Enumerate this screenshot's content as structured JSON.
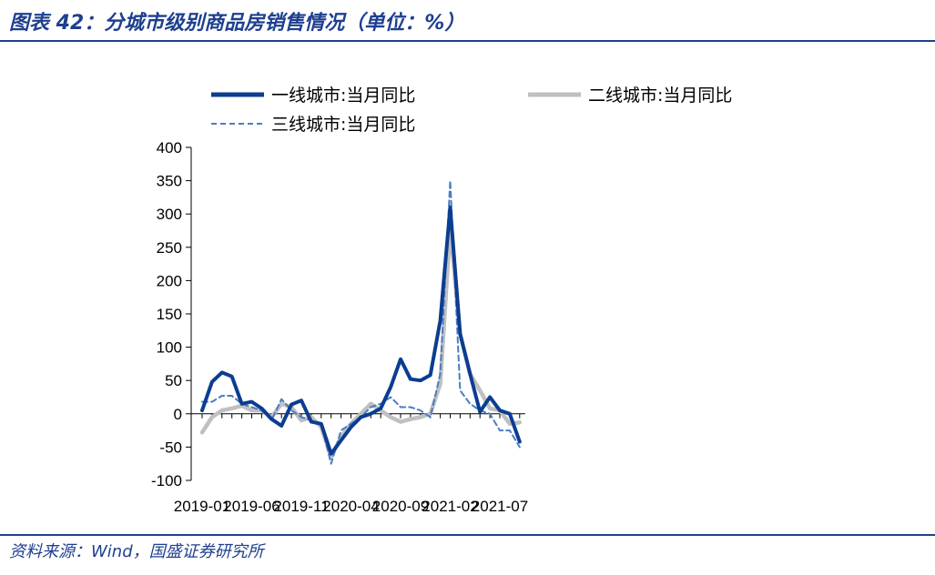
{
  "header": {
    "title": "图表 42：分城市级别商品房销售情况（单位：%）"
  },
  "footer": {
    "source": "资料来源：Wind，国盛证券研究所"
  },
  "colors": {
    "brand": "#1f3f8f",
    "tier1": "#0b3d91",
    "tier2": "#c0c0c0",
    "tier3": "#4a7cc4"
  },
  "chart_data": {
    "type": "line",
    "title": "",
    "xlabel": "",
    "ylabel": "",
    "ylim": [
      -100,
      400
    ],
    "yticks": [
      400,
      350,
      300,
      250,
      200,
      150,
      100,
      50,
      0,
      -50,
      -100
    ],
    "x_tick_labels": [
      {
        "index": 0,
        "label": "2019-01"
      },
      {
        "index": 5,
        "label": "2019-06"
      },
      {
        "index": 10,
        "label": "2019-11"
      },
      {
        "index": 15,
        "label": "2020-04"
      },
      {
        "index": 20,
        "label": "2020-09"
      },
      {
        "index": 25,
        "label": "2021-02"
      },
      {
        "index": 30,
        "label": "2021-07"
      }
    ],
    "x": [
      "2019-01",
      "2019-02",
      "2019-03",
      "2019-04",
      "2019-05",
      "2019-06",
      "2019-07",
      "2019-08",
      "2019-09",
      "2019-10",
      "2019-11",
      "2019-12",
      "2020-01",
      "2020-02",
      "2020-03",
      "2020-04",
      "2020-05",
      "2020-06",
      "2020-07",
      "2020-08",
      "2020-09",
      "2020-10",
      "2020-11",
      "2020-12",
      "2021-01",
      "2021-02",
      "2021-03",
      "2021-04",
      "2021-05",
      "2021-06",
      "2021-07",
      "2021-08",
      "2021-09"
    ],
    "legend_position": "top",
    "grid": false,
    "series": [
      {
        "name": "一线城市:当月同比",
        "style": "solid-thick",
        "color": "#0b3d91",
        "values": [
          5,
          48,
          62,
          56,
          15,
          18,
          8,
          -8,
          -18,
          14,
          20,
          -12,
          -15,
          -60,
          -40,
          -20,
          -5,
          0,
          8,
          40,
          82,
          52,
          50,
          58,
          140,
          310,
          120,
          60,
          3,
          25,
          5,
          0,
          -42
        ]
      },
      {
        "name": "二线城市:当月同比",
        "style": "solid-thick",
        "color": "#c0c0c0",
        "values": [
          -28,
          -5,
          5,
          8,
          12,
          5,
          5,
          -5,
          15,
          10,
          -10,
          -5,
          -20,
          -65,
          -35,
          -15,
          0,
          15,
          5,
          -5,
          -12,
          -8,
          -5,
          0,
          45,
          280,
          120,
          60,
          35,
          8,
          5,
          -15,
          -13
        ]
      },
      {
        "name": "三线城市:当月同比",
        "style": "dashed",
        "color": "#4a7cc4",
        "values": [
          18,
          18,
          27,
          27,
          15,
          10,
          5,
          -10,
          22,
          5,
          -5,
          -10,
          -15,
          -75,
          -25,
          -15,
          -5,
          10,
          15,
          25,
          10,
          10,
          5,
          -5,
          60,
          350,
          35,
          15,
          5,
          0,
          -25,
          -25,
          -50
        ]
      }
    ]
  }
}
